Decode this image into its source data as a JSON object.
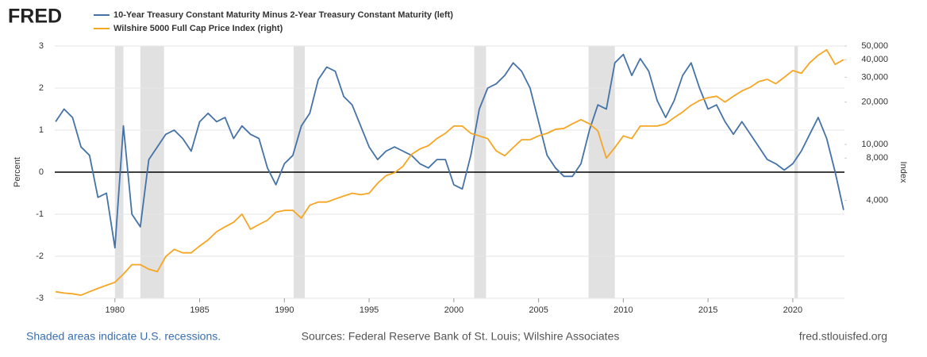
{
  "chart_data": {
    "type": "line",
    "logo": "FRED",
    "y_label": "Percent",
    "y2_label": "Index",
    "footer_left": "Shaded areas indicate U.S. recessions.",
    "footer_center": "Sources: Federal Reserve Bank of St. Louis; Wilshire Associates",
    "footer_right": "fred.stlouisfed.org",
    "xlim": [
      1976.45,
      2023.05
    ],
    "xticks": [
      1980,
      1985,
      1990,
      1995,
      2000,
      2005,
      2010,
      2015,
      2020
    ],
    "ylim": [
      -3,
      3
    ],
    "yticks": [
      -3,
      -2,
      -1,
      0,
      1,
      2,
      3
    ],
    "y2lim": [
      808,
      50000
    ],
    "y2log": true,
    "y2ticks": [
      {
        "value": 4000,
        "label": "4,000"
      },
      {
        "value": 8000,
        "label": "8,000"
      },
      {
        "value": 10000,
        "label": "10,000"
      },
      {
        "value": 20000,
        "label": "20,000"
      },
      {
        "value": 30000,
        "label": "30,000"
      },
      {
        "value": 40000,
        "label": "40,000"
      },
      {
        "value": 50000,
        "label": "50,000"
      }
    ],
    "grid": true,
    "recession_color": "#e1e1e1",
    "recessions": [
      [
        1980.0,
        1980.5
      ],
      [
        1981.5,
        1982.9
      ],
      [
        1990.55,
        1991.2
      ],
      [
        2001.2,
        2001.9
      ],
      [
        2007.95,
        2009.5
      ],
      [
        2020.1,
        2020.3
      ]
    ],
    "x": [
      1976.5,
      1977,
      1977.5,
      1978,
      1978.5,
      1979,
      1979.5,
      1980,
      1980.5,
      1981,
      1981.5,
      1982,
      1982.5,
      1983,
      1983.5,
      1984,
      1984.5,
      1985,
      1985.5,
      1986,
      1986.5,
      1987,
      1987.5,
      1988,
      1988.5,
      1989,
      1989.5,
      1990,
      1990.5,
      1991,
      1991.5,
      1992,
      1992.5,
      1993,
      1993.5,
      1994,
      1994.5,
      1995,
      1995.5,
      1996,
      1996.5,
      1997,
      1997.5,
      1998,
      1998.5,
      1999,
      1999.5,
      2000,
      2000.5,
      2001,
      2001.5,
      2002,
      2002.5,
      2003,
      2003.5,
      2004,
      2004.5,
      2005,
      2005.5,
      2006,
      2006.5,
      2007,
      2007.5,
      2008,
      2008.5,
      2009,
      2009.5,
      2010,
      2010.5,
      2011,
      2011.5,
      2012,
      2012.5,
      2013,
      2013.5,
      2014,
      2014.5,
      2015,
      2015.5,
      2016,
      2016.5,
      2017,
      2017.5,
      2018,
      2018.5,
      2019,
      2019.5,
      2020,
      2020.5,
      2021,
      2021.5,
      2022,
      2022.5,
      2023
    ],
    "series": [
      {
        "name": "10-Year Treasury Constant Maturity Minus 2-Year Treasury Constant Maturity (left)",
        "color": "#4572a7",
        "axis": "y",
        "values": [
          1.2,
          1.5,
          1.3,
          0.6,
          0.4,
          -0.6,
          -0.5,
          -1.8,
          1.1,
          -1.0,
          -1.3,
          0.3,
          0.6,
          0.9,
          1.0,
          0.8,
          0.5,
          1.2,
          1.4,
          1.2,
          1.3,
          0.8,
          1.1,
          0.9,
          0.8,
          0.1,
          -0.3,
          0.2,
          0.4,
          1.1,
          1.4,
          2.2,
          2.5,
          2.4,
          1.8,
          1.6,
          1.1,
          0.6,
          0.3,
          0.5,
          0.6,
          0.5,
          0.4,
          0.2,
          0.1,
          0.3,
          0.3,
          -0.3,
          -0.4,
          0.4,
          1.5,
          2.0,
          2.1,
          2.3,
          2.6,
          2.4,
          2.0,
          1.2,
          0.4,
          0.1,
          -0.1,
          -0.1,
          0.2,
          1.0,
          1.6,
          1.5,
          2.6,
          2.8,
          2.3,
          2.7,
          2.4,
          1.7,
          1.3,
          1.7,
          2.3,
          2.6,
          2.0,
          1.5,
          1.6,
          1.2,
          0.9,
          1.2,
          0.9,
          0.6,
          0.3,
          0.2,
          0.05,
          0.2,
          0.5,
          0.9,
          1.3,
          0.8,
          0.0,
          -0.9
        ]
      },
      {
        "name": "Wilshire 5000 Full Cap Price Index (right)",
        "color": "#f5a623",
        "axis": "y2",
        "values": [
          900,
          880,
          870,
          850,
          900,
          950,
          1000,
          1050,
          1200,
          1400,
          1400,
          1300,
          1250,
          1600,
          1800,
          1700,
          1700,
          1900,
          2100,
          2400,
          2600,
          2800,
          3200,
          2500,
          2700,
          2900,
          3300,
          3400,
          3400,
          3000,
          3700,
          3900,
          3900,
          4100,
          4300,
          4500,
          4400,
          4500,
          5300,
          6000,
          6300,
          7000,
          8500,
          9300,
          9800,
          11000,
          12000,
          13500,
          13500,
          12000,
          11500,
          11000,
          9000,
          8300,
          9500,
          10800,
          10800,
          11500,
          12000,
          12800,
          13000,
          14000,
          15000,
          14000,
          12500,
          8000,
          9500,
          11500,
          11000,
          13500,
          13500,
          13500,
          14000,
          15500,
          17000,
          19000,
          20500,
          21500,
          22000,
          20000,
          22000,
          24000,
          25500,
          28000,
          29000,
          27000,
          30000,
          33500,
          32000,
          38000,
          43000,
          47000,
          37000,
          40000
        ]
      }
    ]
  }
}
